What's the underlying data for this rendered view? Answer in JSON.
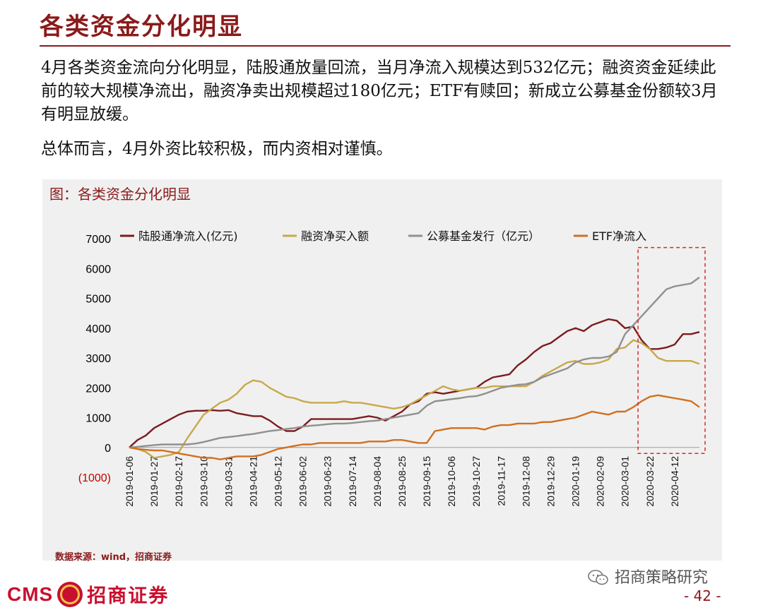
{
  "page": {
    "title": "各类资金分化明显",
    "paragraph1": "4月各类资金流向分化明显，陆股通放量回流，当月净流入规模达到532亿元；融资资金延续此前的较大规模净流出，融资净卖出规模超过180亿元；ETF有赎回；新成立公募基金份额较3月有明显放缓。",
    "paragraph2": "总体而言，4月外资比较积极，而内资相对谨慎。",
    "chart_label": "图：各类资金分化明显",
    "source": "数据来源：wind，招商证券",
    "watermark": "招商策略研究",
    "logo_cms": "CMS",
    "logo_cn": "招商证券",
    "page_number": "- 42 -"
  },
  "chart_data": {
    "type": "line",
    "ylim": [
      -1000,
      7000
    ],
    "yticks": [
      {
        "v": 7000,
        "label": "7000",
        "color": "#000000"
      },
      {
        "v": 6000,
        "label": "6000",
        "color": "#000000"
      },
      {
        "v": 5000,
        "label": "5000",
        "color": "#000000"
      },
      {
        "v": 4000,
        "label": "4000",
        "color": "#000000"
      },
      {
        "v": 3000,
        "label": "3000",
        "color": "#000000"
      },
      {
        "v": 2000,
        "label": "2000",
        "color": "#000000"
      },
      {
        "v": 1000,
        "label": "1000",
        "color": "#000000"
      },
      {
        "v": 0,
        "label": "0",
        "color": "#000000"
      },
      {
        "v": -1000,
        "label": "(1000)",
        "color": "#c00000"
      }
    ],
    "x": [
      "2019-01-06",
      "2019-01-13",
      "2019-01-20",
      "2019-01-27",
      "2019-02-03",
      "2019-02-10",
      "2019-02-17",
      "2019-02-24",
      "2019-03-03",
      "2019-03-10",
      "2019-03-17",
      "2019-03-24",
      "2019-03-31",
      "2019-04-07",
      "2019-04-14",
      "2019-04-21",
      "2019-04-28",
      "2019-05-05",
      "2019-05-12",
      "2019-05-19",
      "2019-05-26",
      "2019-06-02",
      "2019-06-09",
      "2019-06-16",
      "2019-06-23",
      "2019-06-30",
      "2019-07-07",
      "2019-07-14",
      "2019-07-21",
      "2019-07-28",
      "2019-08-04",
      "2019-08-11",
      "2019-08-18",
      "2019-08-25",
      "2019-09-01",
      "2019-09-08",
      "2019-09-15",
      "2019-09-22",
      "2019-09-29",
      "2019-10-06",
      "2019-10-13",
      "2019-10-20",
      "2019-10-27",
      "2019-11-03",
      "2019-11-10",
      "2019-11-17",
      "2019-11-24",
      "2019-12-01",
      "2019-12-08",
      "2019-12-15",
      "2019-12-22",
      "2019-12-29",
      "2020-01-05",
      "2020-01-12",
      "2020-01-19",
      "2020-01-26",
      "2020-02-02",
      "2020-02-09",
      "2020-02-16",
      "2020-02-23",
      "2020-03-01",
      "2020-03-08",
      "2020-03-15",
      "2020-03-22",
      "2020-03-29",
      "2020-04-05",
      "2020-04-12",
      "2020-04-19",
      "2020-04-26",
      "2020-05-03"
    ],
    "tick_labels": [
      "2019-01-06",
      "2019-01-27",
      "2019-02-17",
      "2019-03-10",
      "2019-03-31",
      "2019-04-21",
      "2019-05-12",
      "2019-06-02",
      "2019-06-23",
      "2019-07-14",
      "2019-08-04",
      "2019-08-25",
      "2019-09-15",
      "2019-10-06",
      "2019-10-27",
      "2019-11-17",
      "2019-12-08",
      "2019-12-29",
      "2020-01-19",
      "2020-02-09",
      "2020-03-01",
      "2020-03-22",
      "2020-04-12"
    ],
    "series": [
      {
        "name": "陆股通净流入(亿元)",
        "color": "#7b1c20",
        "values": [
          0,
          250,
          400,
          650,
          800,
          950,
          1100,
          1200,
          1230,
          1230,
          1250,
          1230,
          1250,
          1150,
          1100,
          1050,
          1050,
          900,
          700,
          550,
          550,
          700,
          950,
          950,
          950,
          950,
          950,
          950,
          1000,
          1050,
          1000,
          900,
          1050,
          1200,
          1450,
          1550,
          1800,
          1850,
          1800,
          1850,
          1900,
          1950,
          2000,
          2200,
          2350,
          2400,
          2450,
          2750,
          2950,
          3200,
          3400,
          3500,
          3700,
          3900,
          4000,
          3900,
          4100,
          4200,
          4300,
          4250,
          4000,
          4050,
          3600,
          3300,
          3300,
          3350,
          3450,
          3800,
          3800,
          3870
        ]
      },
      {
        "name": "融资净买入额",
        "color": "#c9a84a",
        "values": [
          0,
          -50,
          -150,
          -350,
          -300,
          -250,
          -150,
          300,
          700,
          1100,
          1300,
          1500,
          1600,
          1800,
          2100,
          2250,
          2200,
          2000,
          1850,
          1700,
          1650,
          1550,
          1500,
          1500,
          1500,
          1500,
          1550,
          1500,
          1500,
          1450,
          1400,
          1350,
          1300,
          1350,
          1450,
          1600,
          1750,
          1900,
          2050,
          1950,
          1900,
          1950,
          2000,
          2000,
          2050,
          2050,
          2050,
          2050,
          2050,
          2200,
          2400,
          2550,
          2700,
          2850,
          2900,
          2800,
          2800,
          2850,
          2950,
          3300,
          3350,
          3600,
          3500,
          3300,
          3000,
          2900,
          2900,
          2900,
          2900,
          2800
        ]
      },
      {
        "name": "公募基金发行（亿元）",
        "color": "#909090",
        "values": [
          0,
          20,
          50,
          80,
          100,
          100,
          100,
          100,
          130,
          180,
          250,
          320,
          350,
          380,
          420,
          450,
          500,
          550,
          580,
          620,
          650,
          700,
          730,
          750,
          780,
          800,
          800,
          820,
          850,
          880,
          900,
          950,
          1000,
          1050,
          1100,
          1150,
          1400,
          1550,
          1580,
          1620,
          1650,
          1700,
          1720,
          1800,
          1900,
          2000,
          2050,
          2100,
          2120,
          2200,
          2350,
          2450,
          2550,
          2650,
          2850,
          2950,
          3000,
          3000,
          3050,
          3200,
          3800,
          4100,
          4400,
          4700,
          5000,
          5300,
          5400,
          5450,
          5500,
          5700
        ]
      },
      {
        "name": "ETF净流入",
        "color": "#d07020",
        "values": [
          0,
          -50,
          -80,
          -100,
          -100,
          -150,
          -200,
          -250,
          -300,
          -350,
          -350,
          -400,
          -350,
          -300,
          -300,
          -300,
          -250,
          -150,
          -50,
          0,
          50,
          100,
          100,
          150,
          150,
          150,
          150,
          150,
          150,
          200,
          200,
          200,
          250,
          250,
          200,
          150,
          150,
          550,
          600,
          650,
          650,
          650,
          650,
          600,
          700,
          750,
          750,
          800,
          800,
          800,
          850,
          850,
          900,
          950,
          1000,
          1100,
          1200,
          1150,
          1100,
          1200,
          1200,
          1350,
          1550,
          1700,
          1750,
          1700,
          1650,
          1600,
          1550,
          1350
        ]
      }
    ],
    "highlight_box": {
      "from": "2020-03-15",
      "to": "2020-05-03",
      "ymin": -200,
      "ymax": 6700,
      "color": "#d42a2a"
    },
    "legend_position": "top",
    "grid": false
  }
}
